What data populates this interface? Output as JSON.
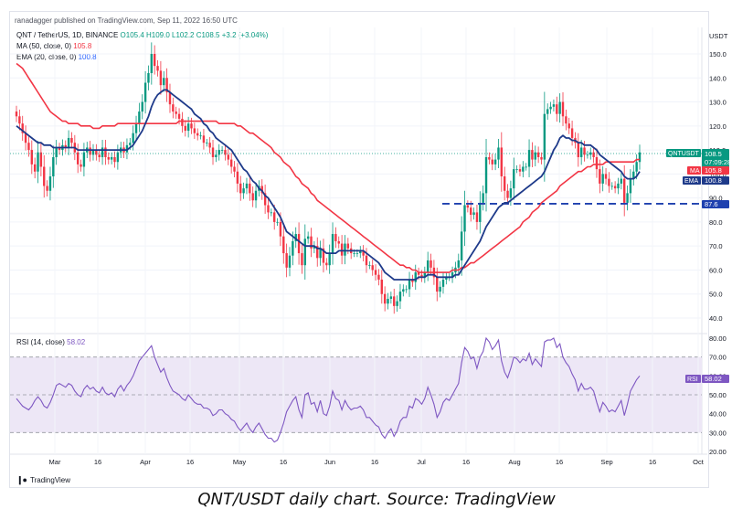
{
  "header": {
    "publisher": "ranadagger published on TradingView.com, Sep 11, 2022 16:50 UTC",
    "symbol": "QNT / TetherUS, 1D, BINANCE",
    "ohlc": "O105.4 H109.0 L102.2 C108.5 +3.2 (+3.04%)",
    "ma_label": "MA (50, close, 0)",
    "ma_value": "105.8",
    "ema_label": "EMA (20, close, 0)",
    "ema_value": "100.8",
    "currency": "USDT"
  },
  "rsi_panel": {
    "label": "RSI (14, close)",
    "value": "58.02"
  },
  "price_badges": {
    "symbol_badge": "QNTUSDT",
    "price": "108.5",
    "countdown": "07:09:28",
    "ma_tag": "MA",
    "ma_val": "105.8",
    "ema_tag": "EMA",
    "ema_val": "100.8",
    "support_val": "87.6",
    "rsi_tag": "RSI",
    "rsi_val": "58.02"
  },
  "branding": "TradingView",
  "caption": "QNT/USDT daily chart. Source: TradingView",
  "colors": {
    "up": "#089981",
    "down": "#f23645",
    "ma": "#f23645",
    "ema": "#1e3a8a",
    "rsi": "#7e57c2",
    "rsi_band": "#ede7f6"
  },
  "chart_data": {
    "type": "candlestick",
    "y_axis": {
      "min": 35,
      "max": 155,
      "ticks": [
        "150.0",
        "140.0",
        "130.0",
        "120.0",
        "110.0",
        "100.0",
        "90.0",
        "80.0",
        "70.0",
        "60.0",
        "50.0",
        "40.0"
      ]
    },
    "x_axis_labels": [
      "Mar",
      "16",
      "Apr",
      "16",
      "May",
      "16",
      "Jun",
      "16",
      "Jul",
      "16",
      "Aug",
      "16",
      "Sep",
      "16",
      "Oct"
    ],
    "support_level": 87.6,
    "close": [
      124,
      121,
      117,
      113,
      110,
      104,
      101,
      109,
      103,
      95,
      93,
      99,
      107,
      111,
      110,
      112,
      111,
      115,
      113,
      109,
      104,
      103,
      109,
      111,
      108,
      110,
      108,
      107,
      111,
      107,
      106,
      107,
      105,
      109,
      111,
      109,
      112,
      113,
      117,
      121,
      126,
      130,
      138,
      142,
      150,
      145,
      143,
      137,
      140,
      134,
      129,
      126,
      125,
      123,
      120,
      118,
      121,
      119,
      117,
      116,
      116,
      113,
      113,
      111,
      107,
      108,
      110,
      110,
      108,
      106,
      103,
      101,
      96,
      92,
      94,
      96,
      92,
      89,
      93,
      95,
      92,
      87,
      84,
      84,
      80,
      80,
      74,
      67,
      61,
      66,
      72,
      75,
      67,
      62,
      73,
      74,
      69,
      70,
      65,
      69,
      63,
      62,
      67,
      75,
      72,
      71,
      66,
      71,
      69,
      67,
      67,
      67,
      68,
      66,
      62,
      62,
      60,
      58,
      56,
      50,
      46,
      48,
      49,
      45,
      47,
      51,
      52,
      52,
      56,
      55,
      59,
      58,
      57,
      59,
      64,
      61,
      57,
      51,
      53,
      56,
      57,
      57,
      59,
      61,
      64,
      76,
      87,
      86,
      83,
      84,
      80,
      88,
      92,
      107,
      106,
      104,
      106,
      111,
      99,
      93,
      90,
      94,
      102,
      102,
      101,
      103,
      103,
      110,
      106,
      109,
      107,
      106,
      125,
      127,
      128,
      129,
      125,
      130,
      124,
      121,
      119,
      115,
      113,
      107,
      111,
      108,
      108,
      109,
      107,
      102,
      96,
      100,
      98,
      95,
      95,
      94,
      96,
      98,
      88,
      92,
      98,
      101,
      105,
      109
    ],
    "ma50": [
      146,
      145,
      144,
      142,
      140,
      138,
      136,
      134,
      132,
      130,
      128,
      126,
      125,
      124,
      123,
      122,
      122,
      121,
      121,
      121,
      121,
      120,
      120,
      120,
      120,
      119,
      119,
      119,
      120,
      120,
      120,
      120,
      120,
      121,
      121,
      121,
      121,
      121,
      121,
      121,
      121,
      121,
      121,
      121,
      121,
      121,
      121,
      121,
      121,
      121,
      121,
      121,
      121,
      122,
      122,
      122,
      122,
      122,
      122,
      122,
      122,
      122,
      122,
      122,
      122,
      122,
      121,
      121,
      121,
      121,
      121,
      121,
      120,
      120,
      119,
      118,
      117,
      117,
      116,
      115,
      114,
      113,
      112,
      111,
      109,
      108,
      107,
      105,
      104,
      103,
      101,
      99,
      98,
      96,
      95,
      94,
      92,
      91,
      89,
      88,
      87,
      86,
      85,
      84,
      83,
      82,
      81,
      80,
      79,
      78,
      77,
      76,
      75,
      74,
      73,
      72,
      71,
      70,
      69,
      68,
      67,
      66,
      65,
      64,
      63,
      62,
      62,
      61,
      61,
      60,
      60,
      59,
      59,
      59,
      59,
      59,
      59,
      59,
      59,
      59,
      59,
      59,
      60,
      60,
      60,
      61,
      61,
      62,
      63,
      63,
      64,
      65,
      66,
      67,
      68,
      69,
      70,
      71,
      72,
      73,
      74,
      75,
      76,
      77,
      78,
      80,
      81,
      82,
      84,
      85,
      86,
      88,
      89,
      90,
      91,
      92,
      93,
      95,
      96,
      97,
      98,
      99,
      100,
      101,
      101,
      102,
      103,
      103,
      104,
      104,
      104,
      104,
      105,
      105,
      105,
      105,
      105,
      105,
      105,
      105,
      105,
      105,
      106,
      106
    ],
    "ema20": [
      120,
      119,
      118,
      117,
      116,
      115,
      114,
      113,
      113,
      112,
      112,
      112,
      111,
      111,
      111,
      111,
      111,
      111,
      111,
      111,
      110,
      110,
      110,
      110,
      110,
      110,
      110,
      110,
      110,
      110,
      110,
      110,
      110,
      110,
      110,
      110,
      110,
      111,
      112,
      114,
      116,
      118,
      121,
      124,
      128,
      131,
      133,
      134,
      135,
      135,
      134,
      133,
      132,
      131,
      130,
      129,
      128,
      127,
      125,
      124,
      123,
      121,
      120,
      118,
      117,
      115,
      114,
      113,
      112,
      111,
      110,
      108,
      106,
      104,
      102,
      101,
      99,
      97,
      96,
      94,
      93,
      91,
      90,
      88,
      86,
      84,
      82,
      79,
      76,
      75,
      74,
      73,
      72,
      71,
      70,
      70,
      70,
      70,
      69,
      69,
      68,
      67,
      67,
      67,
      67,
      68,
      68,
      68,
      68,
      68,
      68,
      68,
      68,
      68,
      67,
      66,
      65,
      64,
      63,
      61,
      59,
      58,
      57,
      56,
      56,
      56,
      56,
      56,
      56,
      56,
      56,
      57,
      57,
      57,
      58,
      58,
      58,
      57,
      57,
      57,
      57,
      57,
      57,
      58,
      58,
      60,
      62,
      64,
      66,
      68,
      70,
      72,
      75,
      78,
      80,
      82,
      84,
      86,
      87,
      88,
      88,
      89,
      90,
      91,
      92,
      93,
      94,
      95,
      96,
      97,
      98,
      99,
      101,
      104,
      107,
      110,
      112,
      115,
      116,
      115,
      115,
      114,
      114,
      113,
      113,
      112,
      112,
      112,
      111,
      110,
      108,
      107,
      106,
      105,
      104,
      103,
      102,
      101,
      99,
      98,
      98,
      98,
      99,
      101
    ],
    "rsi": [
      48,
      46,
      44,
      43,
      42,
      44,
      47,
      49,
      47,
      44,
      43,
      46,
      50,
      55,
      56,
      55,
      54,
      56,
      55,
      52,
      50,
      49,
      53,
      55,
      53,
      54,
      52,
      51,
      54,
      51,
      50,
      51,
      49,
      53,
      55,
      52,
      55,
      57,
      60,
      64,
      68,
      70,
      72,
      74,
      76,
      70,
      66,
      62,
      64,
      59,
      55,
      52,
      51,
      50,
      48,
      47,
      50,
      48,
      46,
      45,
      45,
      43,
      43,
      42,
      39,
      40,
      42,
      42,
      40,
      39,
      37,
      36,
      33,
      31,
      33,
      35,
      32,
      30,
      33,
      35,
      32,
      29,
      27,
      27,
      25,
      26,
      30,
      35,
      41,
      44,
      47,
      49,
      42,
      38,
      50,
      51,
      45,
      46,
      41,
      47,
      40,
      39,
      44,
      52,
      48,
      47,
      42,
      47,
      44,
      42,
      43,
      43,
      44,
      42,
      38,
      38,
      36,
      34,
      33,
      29,
      27,
      30,
      32,
      28,
      31,
      36,
      38,
      38,
      44,
      43,
      48,
      47,
      45,
      48,
      54,
      50,
      45,
      38,
      41,
      46,
      48,
      47,
      50,
      53,
      56,
      67,
      75,
      73,
      69,
      70,
      64,
      70,
      73,
      80,
      78,
      74,
      76,
      79,
      68,
      62,
      59,
      64,
      70,
      69,
      67,
      69,
      68,
      72,
      66,
      69,
      67,
      65,
      78,
      79,
      79,
      80,
      75,
      77,
      70,
      67,
      65,
      61,
      58,
      52,
      56,
      53,
      53,
      54,
      52,
      46,
      41,
      46,
      44,
      41,
      42,
      41,
      44,
      47,
      39,
      45,
      52,
      55,
      58,
      60
    ]
  }
}
